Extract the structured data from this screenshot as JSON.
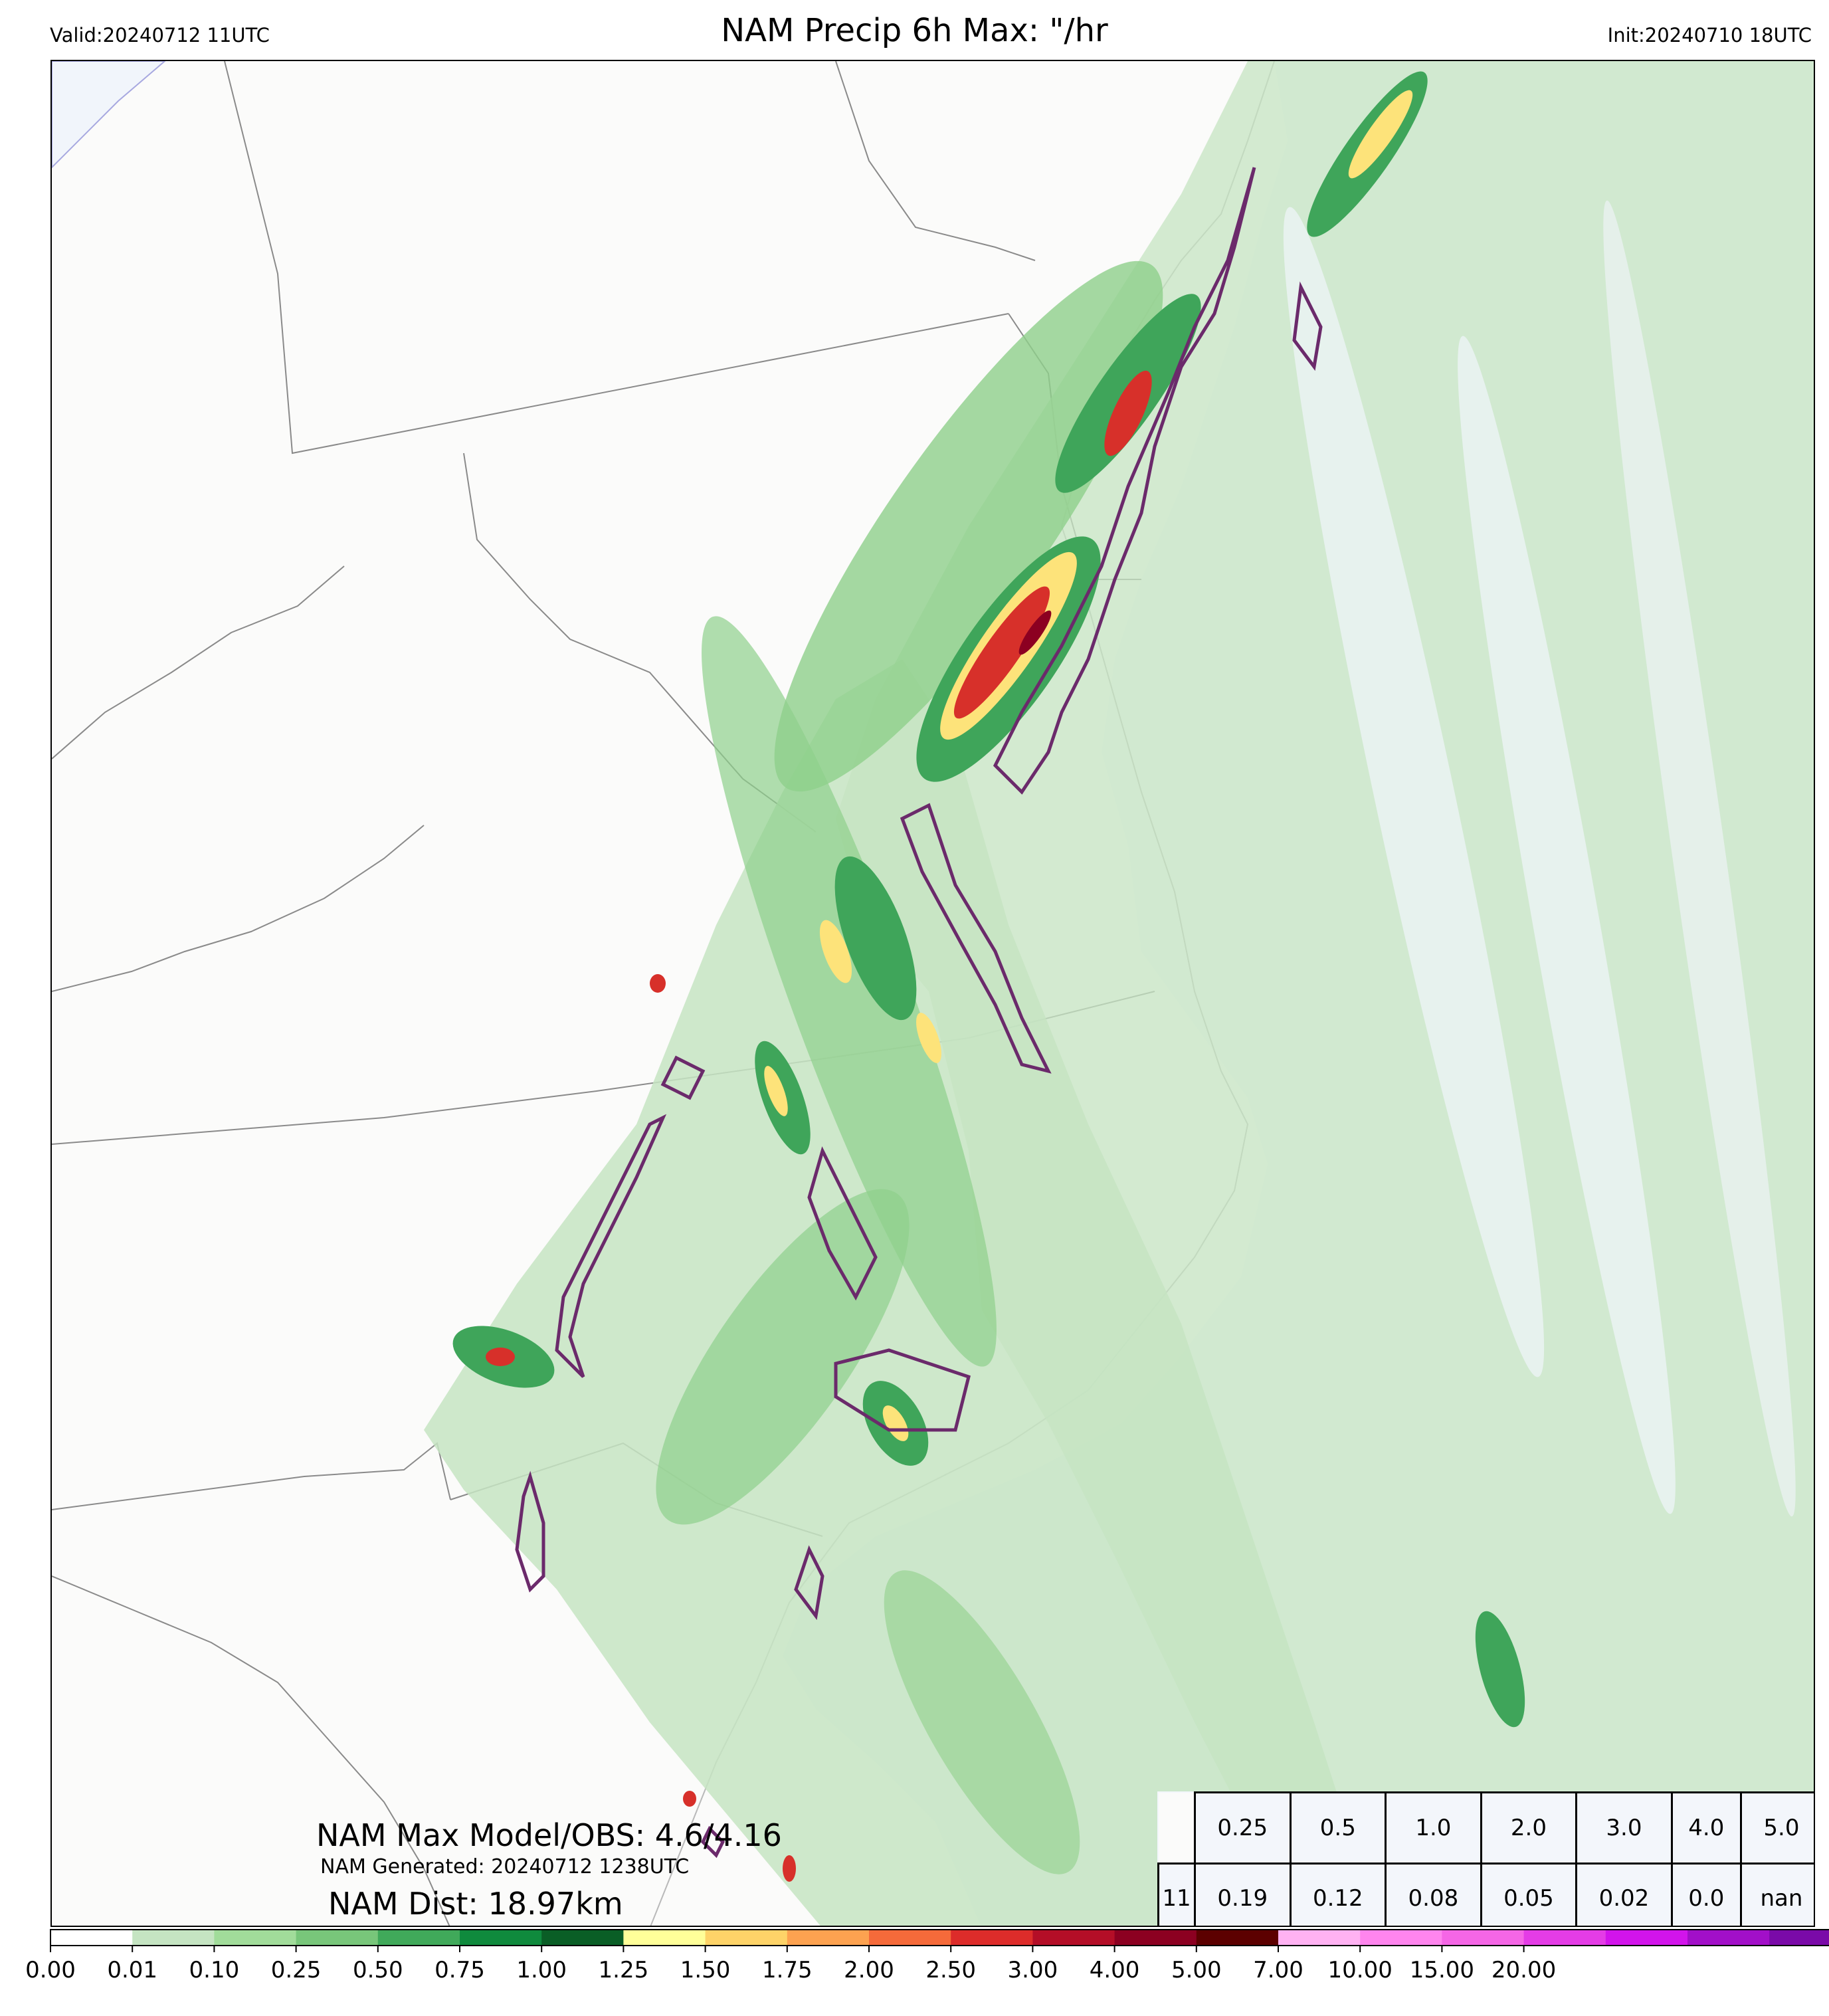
{
  "header": {
    "valid": "Valid:20240712 11UTC",
    "title": "NAM Precip 6h Max: \"/hr",
    "init": "Init:20240710 18UTC"
  },
  "annotations": {
    "max_model_obs": "NAM Max Model/OBS: 4.6/4.16",
    "generated": "NAM Generated: 20240712 1238UTC",
    "distance": "NAM Dist: 18.97km"
  },
  "stats_table": {
    "thresholds": [
      "0.25",
      "0.5",
      "1.0",
      "2.0",
      "3.0",
      "4.0",
      "5.0"
    ],
    "row_label": "11",
    "values": [
      "0.19",
      "0.12",
      "0.08",
      "0.05",
      "0.02",
      "0.0",
      "nan"
    ]
  },
  "colorbar": {
    "ticks": [
      "0.00",
      "0.01",
      "0.10",
      "0.25",
      "0.50",
      "0.75",
      "1.00",
      "1.25",
      "1.50",
      "1.75",
      "2.00",
      "2.50",
      "3.00",
      "4.00",
      "5.00",
      "7.00",
      "10.00",
      "15.00",
      "20.00"
    ],
    "colors": [
      "#ffffff",
      "#c5e4c2",
      "#a1dc9a",
      "#78c67a",
      "#40a95a",
      "#0f8a3d",
      "#0a5e26",
      "#ffff99",
      "#fed368",
      "#fda250",
      "#f56a3a",
      "#dd2c2a",
      "#b40e27",
      "#8c0021",
      "#5c0000",
      "#ffb2f2",
      "#ff85ee",
      "#f566e6",
      "#e43ce6",
      "#d214eb",
      "#a20fc8",
      "#7a0aa8"
    ],
    "extend_color": "#6a0a9e"
  },
  "map": {
    "land_color": "#fbfbfa",
    "ocean_color": "#f1f5fb",
    "obs_contour_color": "#6b2a6b",
    "precip_colors": {
      "light": "#c5e4c2",
      "moderate": "#8fd08b",
      "heavy": "#3fa55a",
      "very_heavy": "#0f7a36",
      "yellow": "#fde37a",
      "orange": "#f59a48",
      "red": "#d7302a",
      "darkred": "#8c0021"
    }
  }
}
